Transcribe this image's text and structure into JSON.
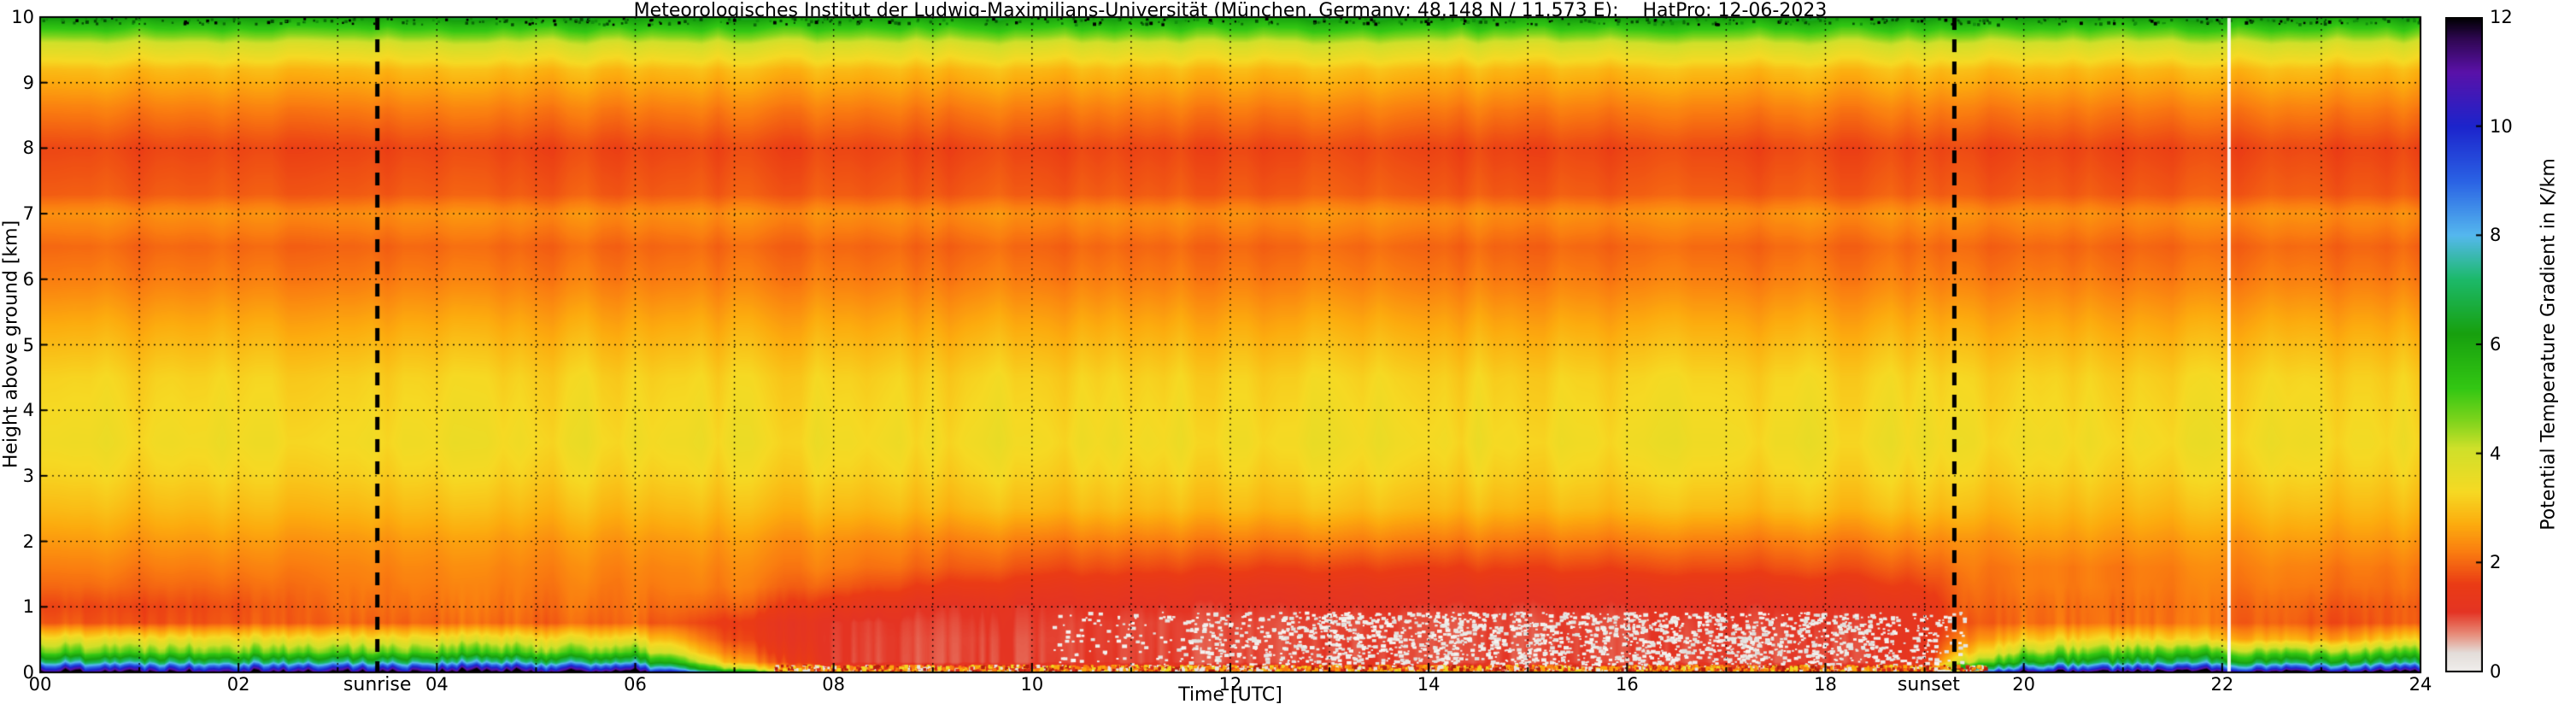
{
  "chart_data": {
    "type": "heatmap",
    "title": "Meteorologisches Institut der Ludwig-Maximilians-Universität (München, Germany; 48.148 N / 11.573 E):    HatPro: 12-06-2023",
    "xlabel": "Time [UTC]",
    "ylabel": "Height above ground [km]",
    "colorbar_label": "Potential Temperature Gradient in K/km",
    "xlim": [
      0,
      24
    ],
    "ylim": [
      0,
      10
    ],
    "colorbar_range": [
      0,
      12
    ],
    "x_tick_values": [
      0,
      2,
      4,
      6,
      8,
      10,
      12,
      14,
      16,
      18,
      20,
      22,
      24
    ],
    "x_tick_labels": [
      "00",
      "02",
      "04",
      "06",
      "08",
      "10",
      "12",
      "14",
      "16",
      "18",
      "20",
      "22",
      "24"
    ],
    "x_minor_step": 1,
    "y_tick_values": [
      0,
      1,
      2,
      3,
      4,
      5,
      6,
      7,
      8,
      9,
      10
    ],
    "y_tick_labels": [
      "0",
      "1",
      "2",
      "3",
      "4",
      "5",
      "6",
      "7",
      "8",
      "9",
      "10"
    ],
    "colorbar_tick_values": [
      0,
      2,
      4,
      6,
      8,
      10,
      12
    ],
    "colorbar_tick_labels": [
      "0",
      "2",
      "4",
      "6",
      "8",
      "10",
      "12"
    ],
    "grid_lines": true,
    "annotations": {
      "sunrise": {
        "time": 3.4,
        "label": "sunrise"
      },
      "sunset": {
        "time": 19.3,
        "label": "sunset"
      }
    },
    "missing_data_time": 22.07,
    "colormap": [
      {
        "v": 0,
        "c": "#f0eeec"
      },
      {
        "v": 0.35,
        "c": "#e3ddd9"
      },
      {
        "v": 0.7,
        "c": "#e78a77"
      },
      {
        "v": 1.1,
        "c": "#e43423"
      },
      {
        "v": 1.6,
        "c": "#ea3b15"
      },
      {
        "v": 2.2,
        "c": "#fa7d10"
      },
      {
        "v": 2.7,
        "c": "#fcab0e"
      },
      {
        "v": 3.3,
        "c": "#f6d923"
      },
      {
        "v": 4.1,
        "c": "#cfe02a"
      },
      {
        "v": 4.6,
        "c": "#7fd41c"
      },
      {
        "v": 5.2,
        "c": "#33c713"
      },
      {
        "v": 6.2,
        "c": "#17a00e"
      },
      {
        "v": 7.2,
        "c": "#1cb96a"
      },
      {
        "v": 8,
        "c": "#55b8ee"
      },
      {
        "v": 9,
        "c": "#2a62e4"
      },
      {
        "v": 10,
        "c": "#1c24cc"
      },
      {
        "v": 11,
        "c": "#5a11a8"
      },
      {
        "v": 11.6,
        "c": "#2f0752"
      },
      {
        "v": 12,
        "c": "#000000"
      }
    ],
    "grid": {
      "times": [
        0,
        1,
        2,
        3,
        4,
        5,
        6,
        7,
        8,
        9,
        10,
        11,
        12,
        13,
        14,
        15,
        16,
        17,
        18,
        19,
        19.5,
        20,
        21,
        22,
        23,
        24
      ],
      "heights": [
        0,
        0.05,
        0.15,
        0.3,
        0.5,
        0.75,
        1.0,
        1.3,
        1.6,
        2.0,
        2.5,
        3.0,
        3.5,
        4.5,
        5.3,
        6.0,
        6.5,
        7.0,
        7.3,
        8.0,
        8.6,
        9.2,
        9.6,
        9.85,
        10.0
      ],
      "values": [
        [
          12,
          12,
          12,
          12,
          12,
          12,
          12,
          6,
          2.2,
          2.2,
          2.2,
          2.2,
          2.2,
          2.2,
          2.2,
          2.2,
          2.2,
          2.2,
          2.2,
          2.8,
          9,
          12,
          12,
          12,
          12,
          12
        ],
        [
          10.5,
          10.5,
          10.5,
          10.5,
          10.5,
          10.5,
          10.2,
          4,
          1.6,
          1.5,
          1.5,
          1.4,
          1.4,
          1.4,
          1.4,
          1.4,
          1.4,
          1.5,
          1.5,
          1.8,
          7,
          9.5,
          10,
          10,
          9.6,
          10
        ],
        [
          7.5,
          7.5,
          7.5,
          7.5,
          7.5,
          7.5,
          7.2,
          2.5,
          1.1,
          1,
          1,
          1,
          1,
          1,
          1,
          1,
          1,
          1,
          1,
          1.2,
          4.5,
          6.5,
          7,
          7,
          6.6,
          7
        ],
        [
          5,
          5,
          5,
          5,
          5,
          5,
          4.8,
          2,
          1.1,
          1,
          1,
          1,
          1,
          1,
          1,
          1,
          1,
          1,
          1,
          1.2,
          3.2,
          4.6,
          5,
          5,
          4.6,
          5
        ],
        [
          3.6,
          3.6,
          3.6,
          3.6,
          3.6,
          3.6,
          3.4,
          1.6,
          1.1,
          1,
          1,
          1,
          1,
          1,
          1,
          1,
          1,
          1,
          1,
          1.2,
          2.4,
          3.2,
          3.4,
          3,
          2.6,
          3.2
        ],
        [
          1.9,
          1.8,
          1.9,
          2,
          2,
          2,
          2,
          1.5,
          1.1,
          1.05,
          1.05,
          1,
          1,
          1,
          1,
          1,
          1,
          1.05,
          1.05,
          1.2,
          1.9,
          2.1,
          2.1,
          2.1,
          1.8,
          1.9
        ],
        [
          1.7,
          1.7,
          1.8,
          2.1,
          2.1,
          2.1,
          2.1,
          1.9,
          1.4,
          1.15,
          1.1,
          1.1,
          1.1,
          1.1,
          1.1,
          1.1,
          1.1,
          1.1,
          1.15,
          1.3,
          2,
          2.1,
          2.1,
          2.1,
          1.9,
          1.9
        ],
        [
          2,
          2,
          2,
          2.2,
          2.2,
          2.2,
          2.2,
          2.2,
          1.9,
          1.6,
          1.4,
          1.35,
          1.3,
          1.3,
          1.3,
          1.3,
          1.3,
          1.35,
          1.4,
          1.6,
          2.1,
          2.2,
          2.2,
          2.2,
          2.1,
          2.1
        ],
        [
          2.2,
          2.2,
          2.2,
          2.3,
          2.3,
          2.3,
          2.3,
          2.3,
          2.2,
          2,
          1.8,
          1.75,
          1.7,
          1.65,
          1.65,
          1.7,
          1.7,
          1.75,
          1.8,
          1.9,
          2.2,
          2.2,
          2.2,
          2.3,
          2.2,
          2.2
        ],
        [
          2.5,
          2.5,
          2.5,
          2.5,
          2.5,
          2.5,
          2.5,
          2.5,
          2.4,
          2.3,
          2.2,
          2.2,
          2.2,
          2.2,
          2.2,
          2.2,
          2.2,
          2.2,
          2.2,
          2.3,
          2.4,
          2.5,
          2.5,
          2.5,
          2.5,
          2.5
        ],
        [
          2.9,
          2.9,
          2.9,
          2.9,
          2.9,
          2.9,
          2.9,
          2.9,
          2.9,
          2.9,
          2.9,
          2.9,
          2.9,
          2.9,
          2.9,
          2.9,
          2.9,
          2.9,
          2.9,
          2.9,
          2.9,
          2.9,
          2.9,
          2.9,
          2.9,
          2.9
        ],
        [
          3.2,
          3.2,
          3.2,
          3.2,
          3.2,
          3.2,
          3.2,
          3.2,
          3.2,
          3.2,
          3.2,
          3.2,
          3.2,
          3.2,
          3.2,
          3.2,
          3.2,
          3.2,
          3.2,
          3.2,
          3.2,
          3.2,
          3.2,
          3.2,
          3.2,
          3.2
        ],
        [
          3.4,
          3.4,
          3.4,
          3.4,
          3.4,
          3.4,
          3.4,
          3.4,
          3.4,
          3.4,
          3.4,
          3.4,
          3.4,
          3.4,
          3.4,
          3.4,
          3.4,
          3.4,
          3.4,
          3.4,
          3.4,
          3.4,
          3.4,
          3.4,
          3.4,
          3.4
        ],
        [
          3.2,
          3.2,
          3.2,
          3.2,
          3.2,
          3.2,
          3.2,
          3.2,
          3.2,
          3.2,
          3.2,
          3.2,
          3.2,
          3.2,
          3.2,
          3.2,
          3.2,
          3.2,
          3.2,
          3.2,
          3.2,
          3.2,
          3.2,
          3.2,
          3.2,
          3.2
        ],
        [
          2.7,
          2.7,
          2.7,
          2.7,
          2.7,
          2.7,
          2.7,
          2.7,
          2.7,
          2.7,
          2.7,
          2.7,
          2.7,
          2.7,
          2.7,
          2.7,
          2.7,
          2.7,
          2.7,
          2.7,
          2.7,
          2.7,
          2.7,
          2.7,
          2.7,
          2.7
        ],
        [
          2.2,
          2.2,
          2.2,
          2.2,
          2.2,
          2.2,
          2.2,
          2.2,
          2.2,
          2.2,
          2.2,
          2.2,
          2.2,
          2.2,
          2.2,
          2.2,
          2.2,
          2.2,
          2.2,
          2.2,
          2.2,
          2.2,
          2.2,
          2.2,
          2.2,
          2.2
        ],
        [
          2,
          2,
          2,
          2,
          2,
          2,
          2,
          2,
          2,
          2,
          2,
          2,
          2,
          2,
          2,
          2,
          2,
          2,
          2,
          2,
          2,
          2,
          2,
          2,
          2,
          2
        ],
        [
          2.4,
          2.4,
          2.4,
          2.4,
          2.4,
          2.4,
          2.4,
          2.4,
          2.4,
          2.4,
          2.4,
          2.4,
          2.4,
          2.4,
          2.4,
          2.4,
          2.4,
          2.4,
          2.4,
          2.4,
          2.4,
          2.4,
          2.4,
          2.4,
          2.4,
          2.4
        ],
        [
          1.9,
          1.9,
          1.9,
          1.9,
          1.9,
          1.9,
          1.9,
          1.9,
          1.9,
          1.9,
          1.9,
          1.9,
          1.9,
          1.9,
          1.9,
          1.9,
          1.9,
          1.9,
          1.9,
          1.9,
          1.9,
          1.9,
          1.9,
          1.9,
          1.9,
          1.9
        ],
        [
          1.7,
          1.7,
          1.7,
          1.7,
          1.7,
          1.7,
          1.7,
          1.7,
          1.7,
          1.7,
          1.7,
          1.7,
          1.7,
          1.7,
          1.7,
          1.7,
          1.7,
          1.7,
          1.7,
          1.7,
          1.7,
          1.7,
          1.7,
          1.7,
          1.7,
          1.7
        ],
        [
          2.2,
          2.2,
          2.2,
          2.2,
          2.2,
          2.2,
          2.2,
          2.2,
          2.2,
          2.2,
          2.2,
          2.2,
          2.2,
          2.2,
          2.2,
          2.2,
          2.2,
          2.2,
          2.2,
          2.2,
          2.2,
          2.2,
          2.2,
          2.2,
          2.2,
          2.2
        ],
        [
          2.9,
          2.9,
          2.9,
          2.9,
          2.9,
          2.9,
          2.9,
          2.9,
          2.9,
          2.9,
          2.9,
          2.9,
          2.9,
          2.9,
          2.9,
          2.9,
          2.9,
          2.9,
          2.9,
          2.9,
          2.9,
          2.9,
          2.9,
          2.9,
          2.9,
          2.9
        ],
        [
          4,
          4,
          4,
          4,
          4,
          4,
          4,
          4,
          4,
          4,
          4,
          4,
          4,
          4,
          4,
          4,
          4,
          4,
          4,
          4,
          4,
          4,
          4,
          4,
          4,
          4
        ],
        [
          5.3,
          5.3,
          5.3,
          5.3,
          5.3,
          5.3,
          5.3,
          5.3,
          5.3,
          5.3,
          5.3,
          5.3,
          5.3,
          5.3,
          5.3,
          5.3,
          5.3,
          5.3,
          5.3,
          5.3,
          5.3,
          5.3,
          5.3,
          5.3,
          5.3,
          5.3
        ],
        [
          6.3,
          6.3,
          6.3,
          6.3,
          6.3,
          6.3,
          6.3,
          6.3,
          6.3,
          6.3,
          6.3,
          6.3,
          6.3,
          6.3,
          6.3,
          6.3,
          6.3,
          6.3,
          6.3,
          6.3,
          6.3,
          6.3,
          6.3,
          6.3,
          6.3,
          6.3
        ]
      ]
    }
  }
}
